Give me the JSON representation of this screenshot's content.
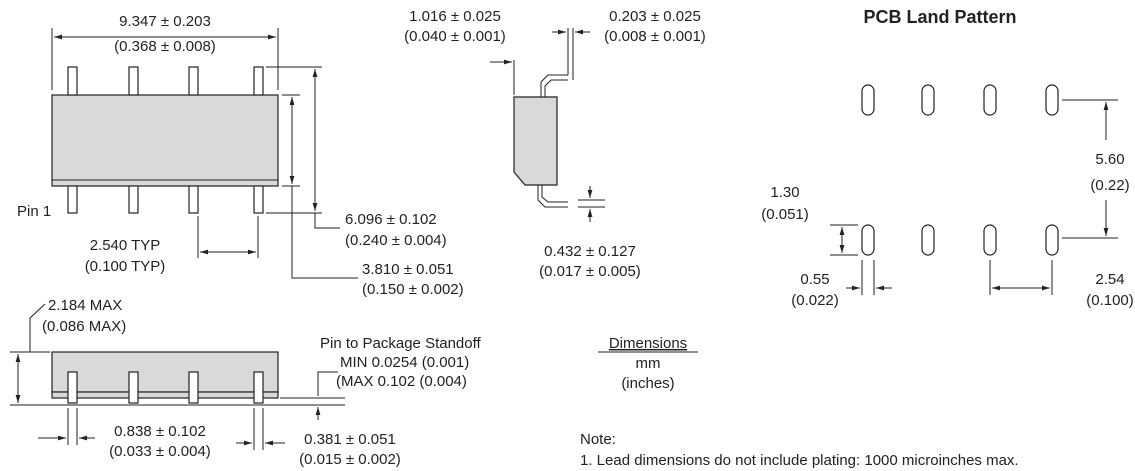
{
  "top_view": {
    "length": [
      "9.347 ± 0.203",
      "(0.368 ± 0.008)"
    ],
    "pin1": "Pin 1",
    "pitch": [
      "2.540 TYP",
      "(0.100 TYP)"
    ],
    "span": [
      "6.096 ± 0.102",
      "(0.240 ± 0.004)"
    ],
    "width": [
      "3.810 ± 0.051",
      "(0.150 ± 0.002)"
    ]
  },
  "side_view": {
    "lead_length": [
      "1.016 ± 0.025",
      "(0.040 ± 0.001)"
    ],
    "lead_thickness": [
      "0.203 ± 0.025",
      "(0.008 ± 0.001)"
    ],
    "lead_offset": [
      "0.432 ± 0.127",
      "(0.017 ± 0.005)"
    ]
  },
  "pcb": {
    "title": "PCB Land Pattern",
    "row_spacing": [
      "5.60",
      "(0.22)"
    ],
    "pad_length": [
      "1.30",
      "(0.051)"
    ],
    "pad_width": [
      "0.55",
      "(0.022)"
    ],
    "pitch": [
      "2.54",
      "(0.100)"
    ]
  },
  "front_view": {
    "height": [
      "2.184 MAX",
      "(0.086 MAX)"
    ],
    "standoff": [
      "Pin to Package Standoff",
      "MIN 0.0254 (0.001)",
      "(MAX 0.102 (0.004)"
    ],
    "lead_width_upper": [
      "0.838 ± 0.102",
      "(0.033 ± 0.004)"
    ],
    "lead_width_lower": [
      "0.381 ± 0.051",
      "(0.015 ± 0.002)"
    ]
  },
  "legend": {
    "heading": "Dimensions",
    "unit": "mm",
    "alt_unit": "(inches)"
  },
  "note": {
    "heading": "Note:",
    "items": [
      "1. Lead dimensions do not include plating: 1000 microinches max."
    ]
  }
}
